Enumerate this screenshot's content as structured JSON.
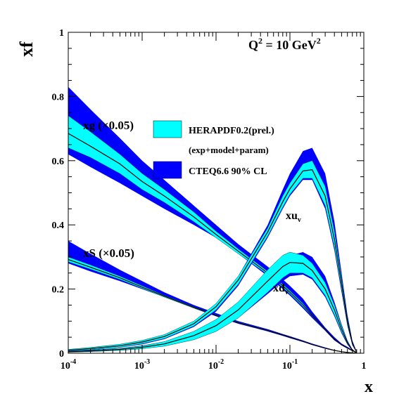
{
  "chart_data": {
    "type": "line",
    "xscale": "log",
    "xlim": [
      0.0001,
      1
    ],
    "ylim": [
      0,
      1
    ],
    "ylabel": "xf",
    "xlabel": "x",
    "annotation_scale": {
      "main": "Q",
      "sup1": "2",
      "eq": " = 10 GeV",
      "sup2": "2"
    },
    "x_ticks": [
      {
        "base": "10",
        "exp": "-4",
        "value": 0.0001
      },
      {
        "base": "10",
        "exp": "-3",
        "value": 0.001
      },
      {
        "base": "10",
        "exp": "-2",
        "value": 0.01
      },
      {
        "base": "10",
        "exp": "-1",
        "value": 0.1
      },
      {
        "base": "1",
        "exp": "",
        "value": 1
      }
    ],
    "y_ticks": [
      "0",
      "0.2",
      "0.4",
      "0.6",
      "0.8",
      "1"
    ],
    "y_tick_values": [
      0,
      0.2,
      0.4,
      0.6,
      0.8,
      1
    ],
    "legend": {
      "herapdf_label": "HERAPDF0.2(prel.)",
      "herapdf_sub": "(exp+model+param)",
      "cteq_label": "CTEQ6.6 90% CL",
      "herapdf_color": "#00ffff",
      "cteq_color": "#0000ff"
    },
    "curve_labels": {
      "xg": "xg (×0.05)",
      "xS": "xS (×0.05)",
      "xuv_main": "xu",
      "xuv_sub": "v",
      "xdv_main": "xd",
      "xdv_sub": "v"
    },
    "x_samples": [
      0.0001,
      0.0002,
      0.0005,
      0.001,
      0.002,
      0.005,
      0.01,
      0.02,
      0.05,
      0.08,
      0.1,
      0.15,
      0.2,
      0.3,
      0.4,
      0.5,
      0.6,
      0.7,
      0.8
    ],
    "series": [
      {
        "name": "xg (×0.05)",
        "cteq_upper": [
          0.83,
          0.76,
          0.67,
          0.6,
          0.54,
          0.46,
          0.4,
          0.34,
          0.27,
          0.23,
          0.21,
          0.17,
          0.13,
          0.08,
          0.05,
          0.03,
          0.02,
          0.01,
          0.004
        ],
        "cteq_lower": [
          0.62,
          0.58,
          0.53,
          0.49,
          0.45,
          0.4,
          0.36,
          0.31,
          0.24,
          0.2,
          0.18,
          0.14,
          0.11,
          0.07,
          0.04,
          0.025,
          0.015,
          0.008,
          0.002
        ],
        "hera_upper": [
          0.74,
          0.69,
          0.62,
          0.56,
          0.51,
          0.44,
          0.38,
          0.325,
          0.255,
          0.215,
          0.195,
          0.155,
          0.12,
          0.075,
          0.045,
          0.027,
          0.017,
          0.009,
          0.003
        ],
        "hera_lower": [
          0.64,
          0.61,
          0.56,
          0.51,
          0.47,
          0.41,
          0.36,
          0.31,
          0.245,
          0.205,
          0.185,
          0.145,
          0.115,
          0.072,
          0.043,
          0.026,
          0.016,
          0.008,
          0.002
        ],
        "central": [
          0.685,
          0.645,
          0.59,
          0.535,
          0.49,
          0.425,
          0.37,
          0.318,
          0.25,
          0.21,
          0.19,
          0.15,
          0.118,
          0.074,
          0.044,
          0.026,
          0.016,
          0.008,
          0.002
        ]
      },
      {
        "name": "xS (×0.05)",
        "cteq_upper": [
          0.35,
          0.31,
          0.26,
          0.225,
          0.19,
          0.15,
          0.125,
          0.1,
          0.075,
          0.06,
          0.053,
          0.04,
          0.03,
          0.018,
          0.01,
          0.006,
          0.003,
          0.0015,
          0.0005
        ],
        "cteq_lower": [
          0.28,
          0.255,
          0.225,
          0.2,
          0.175,
          0.14,
          0.115,
          0.092,
          0.068,
          0.054,
          0.047,
          0.035,
          0.026,
          0.015,
          0.008,
          0.004,
          0.002,
          0.001,
          0.0003
        ],
        "hera_upper": [
          0.3,
          0.275,
          0.24,
          0.21,
          0.18,
          0.145,
          0.12,
          0.097,
          0.072,
          0.058,
          0.051,
          0.038,
          0.028,
          0.016,
          0.009,
          0.005,
          0.0025,
          0.0012,
          0.0004
        ],
        "hera_lower": [
          0.285,
          0.262,
          0.23,
          0.202,
          0.175,
          0.141,
          0.117,
          0.094,
          0.07,
          0.056,
          0.049,
          0.036,
          0.027,
          0.015,
          0.0085,
          0.0045,
          0.0022,
          0.001,
          0.0003
        ],
        "central": [
          0.292,
          0.268,
          0.235,
          0.206,
          0.178,
          0.143,
          0.118,
          0.095,
          0.071,
          0.057,
          0.05,
          0.037,
          0.027,
          0.0155,
          0.0088,
          0.0048,
          0.0024,
          0.0011,
          0.0003
        ]
      },
      {
        "name": "xu_v",
        "cteq_upper": [
          0.012,
          0.018,
          0.028,
          0.04,
          0.058,
          0.1,
          0.155,
          0.24,
          0.4,
          0.51,
          0.56,
          0.63,
          0.64,
          0.56,
          0.41,
          0.25,
          0.12,
          0.04,
          0.005
        ],
        "cteq_lower": [
          0.006,
          0.01,
          0.018,
          0.028,
          0.044,
          0.082,
          0.13,
          0.21,
          0.36,
          0.45,
          0.49,
          0.54,
          0.54,
          0.45,
          0.32,
          0.19,
          0.085,
          0.025,
          0.002
        ],
        "hera_upper": [
          0.012,
          0.018,
          0.028,
          0.04,
          0.058,
          0.1,
          0.155,
          0.24,
          0.39,
          0.49,
          0.53,
          0.59,
          0.6,
          0.52,
          0.38,
          0.235,
          0.11,
          0.035,
          0.004
        ],
        "hera_lower": [
          0.007,
          0.011,
          0.019,
          0.03,
          0.046,
          0.085,
          0.135,
          0.215,
          0.365,
          0.455,
          0.495,
          0.545,
          0.545,
          0.46,
          0.33,
          0.2,
          0.09,
          0.028,
          0.003
        ],
        "central": [
          0.0095,
          0.0145,
          0.0235,
          0.035,
          0.052,
          0.092,
          0.145,
          0.228,
          0.378,
          0.472,
          0.512,
          0.568,
          0.572,
          0.49,
          0.355,
          0.218,
          0.1,
          0.031,
          0.0035
        ]
      },
      {
        "name": "xd_v",
        "cteq_upper": [
          0.007,
          0.01,
          0.016,
          0.024,
          0.036,
          0.063,
          0.095,
          0.145,
          0.235,
          0.285,
          0.305,
          0.315,
          0.3,
          0.24,
          0.16,
          0.09,
          0.04,
          0.012,
          0.0015
        ],
        "cteq_lower": [
          0.003,
          0.005,
          0.009,
          0.014,
          0.022,
          0.042,
          0.068,
          0.11,
          0.185,
          0.225,
          0.24,
          0.245,
          0.23,
          0.175,
          0.115,
          0.062,
          0.027,
          0.008,
          0.0008
        ],
        "hera_upper": [
          0.006,
          0.009,
          0.015,
          0.023,
          0.036,
          0.068,
          0.105,
          0.16,
          0.26,
          0.305,
          0.315,
          0.305,
          0.28,
          0.22,
          0.15,
          0.085,
          0.037,
          0.011,
          0.0014
        ],
        "hera_lower": [
          0.003,
          0.005,
          0.009,
          0.014,
          0.022,
          0.042,
          0.068,
          0.11,
          0.19,
          0.235,
          0.25,
          0.25,
          0.235,
          0.18,
          0.12,
          0.066,
          0.029,
          0.009,
          0.0009
        ],
        "central": [
          0.0045,
          0.007,
          0.012,
          0.0185,
          0.029,
          0.055,
          0.086,
          0.135,
          0.225,
          0.27,
          0.283,
          0.28,
          0.258,
          0.2,
          0.135,
          0.075,
          0.033,
          0.01,
          0.0011
        ]
      }
    ]
  }
}
